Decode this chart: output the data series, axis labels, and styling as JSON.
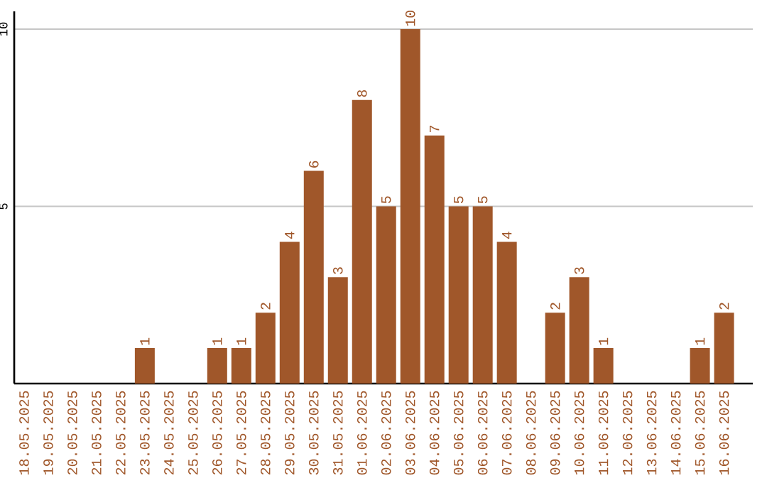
{
  "chart_data": {
    "type": "bar",
    "categories": [
      "18.05.2025",
      "19.05.2025",
      "20.05.2025",
      "21.05.2025",
      "22.05.2025",
      "23.05.2025",
      "24.05.2025",
      "25.05.2025",
      "26.05.2025",
      "27.05.2025",
      "28.05.2025",
      "29.05.2025",
      "30.05.2025",
      "31.05.2025",
      "01.06.2025",
      "02.06.2025",
      "03.06.2025",
      "04.06.2025",
      "05.06.2025",
      "06.06.2025",
      "07.06.2025",
      "08.06.2025",
      "09.06.2025",
      "10.06.2025",
      "11.06.2025",
      "12.06.2025",
      "13.06.2025",
      "14.06.2025",
      "15.06.2025",
      "16.06.2025"
    ],
    "values": [
      0,
      0,
      0,
      0,
      0,
      1,
      0,
      0,
      1,
      1,
      2,
      4,
      6,
      3,
      8,
      5,
      10,
      7,
      5,
      5,
      4,
      0,
      2,
      3,
      1,
      0,
      0,
      0,
      1,
      2
    ],
    "value_labels": [
      null,
      null,
      null,
      null,
      null,
      "1",
      null,
      null,
      "1",
      "1",
      "2",
      "4",
      "6",
      "3",
      "8",
      "5",
      "10",
      "7",
      "5",
      "5",
      "4",
      null,
      "2",
      "3",
      "1",
      null,
      null,
      null,
      "1",
      "2"
    ],
    "color": "#a0572a",
    "ylim": [
      0,
      10.5
    ],
    "yticks": [
      5,
      10
    ],
    "grid": "y"
  }
}
